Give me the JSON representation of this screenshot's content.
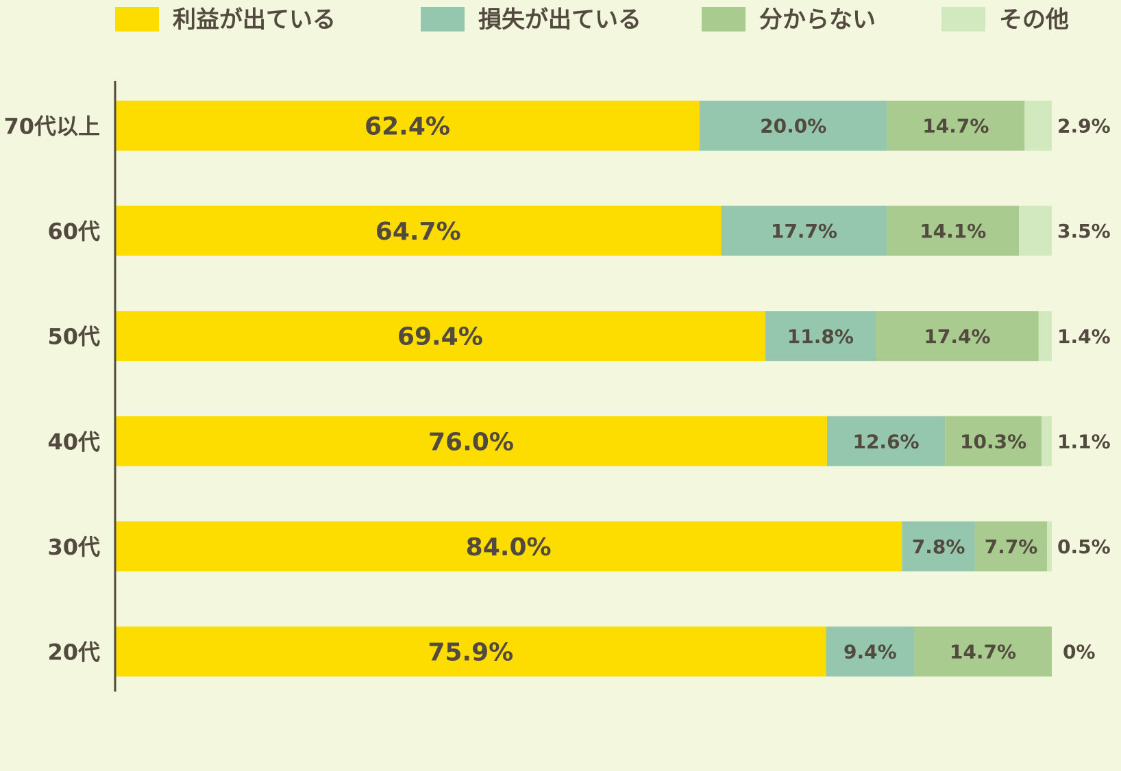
{
  "chart_data": {
    "type": "bar",
    "orientation": "horizontal",
    "stacked": true,
    "categories": [
      "70代以上",
      "60代",
      "50代",
      "40代",
      "30代",
      "20代"
    ],
    "series": [
      {
        "name": "利益が出ている",
        "values": [
          62.4,
          64.7,
          69.4,
          76.0,
          84.0,
          75.9
        ],
        "labels": [
          "62.4%",
          "64.7%",
          "69.4%",
          "76.0%",
          "84.0%",
          "75.9%"
        ],
        "color": "#fddd00"
      },
      {
        "name": "損失が出ている",
        "values": [
          20.0,
          17.7,
          11.8,
          12.6,
          7.8,
          9.4
        ],
        "labels": [
          "20.0%",
          "17.7%",
          "11.8%",
          "12.6%",
          "7.8%",
          "9.4%"
        ],
        "color": "#95c6ae"
      },
      {
        "name": "分からない",
        "values": [
          14.7,
          14.1,
          17.4,
          10.3,
          7.7,
          14.7
        ],
        "labels": [
          "14.7%",
          "14.1%",
          "17.4%",
          "10.3%",
          "7.7%",
          "14.7%"
        ],
        "color": "#a9cb8f"
      },
      {
        "name": "その他",
        "values": [
          2.9,
          3.5,
          1.4,
          1.1,
          0.5,
          0
        ],
        "labels": [
          "2.9%",
          "3.5%",
          "1.4%",
          "1.1%",
          "0.5%",
          "0%"
        ],
        "color": "#d2e8bf"
      }
    ],
    "xlim": [
      0,
      100
    ],
    "grid": false,
    "legend": "top",
    "background": "#f3f7de",
    "text_color": "#534a3f",
    "axis_color": "#534a3f"
  }
}
